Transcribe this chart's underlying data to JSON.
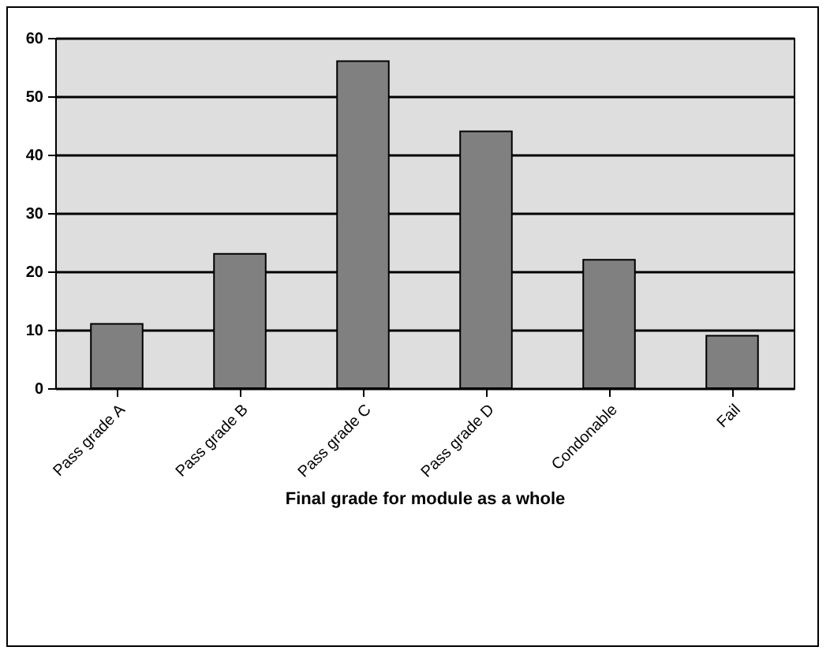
{
  "chart_data": {
    "type": "bar",
    "xlabel": "Final grade for module as a whole",
    "categories": [
      "Pass grade A",
      "Pass grade B",
      "Pass grade C",
      "Pass grade D",
      "Condonable",
      "Fail"
    ],
    "values": [
      11,
      23,
      56,
      44,
      22,
      9
    ],
    "color": "#808080",
    "ylim": [
      0,
      60
    ],
    "yticks": [
      0,
      10,
      20,
      30,
      40,
      50,
      60
    ],
    "grid": "y"
  }
}
